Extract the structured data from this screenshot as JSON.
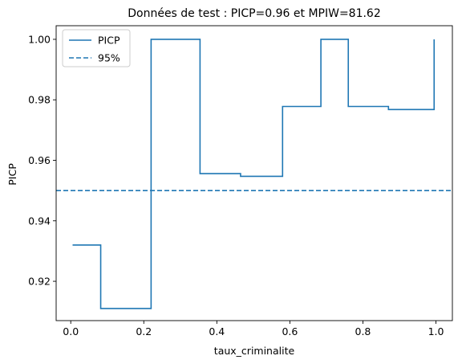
{
  "chart_data": {
    "type": "line",
    "title": "Données de test : PICP=0.96 et MPIW=81.62",
    "xlabel": "taux_criminalite",
    "ylabel": "PICP",
    "xlim": [
      -0.04,
      1.045
    ],
    "ylim": [
      0.907,
      1.0045
    ],
    "xticks": [
      0.0,
      0.2,
      0.4,
      0.6,
      0.8,
      1.0
    ],
    "xtick_labels": [
      "0.0",
      "0.2",
      "0.4",
      "0.6",
      "0.8",
      "1.0"
    ],
    "yticks": [
      0.92,
      0.94,
      0.96,
      0.98,
      1.0
    ],
    "ytick_labels": [
      "0.92",
      "0.94",
      "0.96",
      "0.98",
      "1.00"
    ],
    "grid": false,
    "legend_position": "top-left",
    "color": "#1f77b4",
    "series": [
      {
        "name": "PICP",
        "style": "solid",
        "x": [
          0.005,
          0.082,
          0.082,
          0.22,
          0.22,
          0.354,
          0.354,
          0.465,
          0.465,
          0.58,
          0.58,
          0.685,
          0.685,
          0.76,
          0.76,
          0.87,
          0.87,
          0.995,
          0.995
        ],
        "y": [
          0.932,
          0.932,
          0.911,
          0.911,
          1.0,
          1.0,
          0.9556,
          0.9556,
          0.9547,
          0.9547,
          0.9778,
          0.9778,
          1.0,
          1.0,
          0.9778,
          0.9778,
          0.9768,
          0.9768,
          1.0
        ]
      },
      {
        "name": "95%",
        "style": "dashed",
        "y_constant": 0.95
      }
    ]
  }
}
